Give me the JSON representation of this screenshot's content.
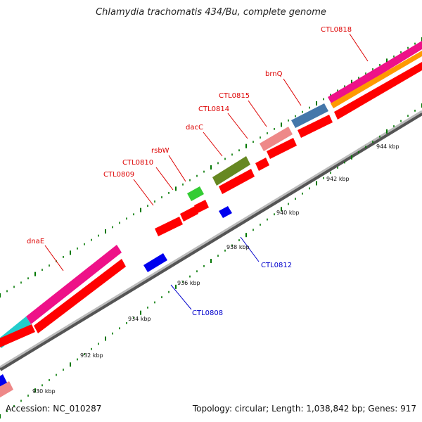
{
  "title": "Chlamydia trachomatis 434/Bu, complete genome",
  "footer": {
    "accession": "Accession: NC_010287",
    "summary": "Topology: circular; Length: 1,038,842 bp; Genes: 917"
  },
  "colors": {
    "forward_gene": "#ff0000",
    "reverse_gene": "#0000ee",
    "backbone": "#888888",
    "tick": "#007700",
    "label_forward": "#dd0000",
    "label_reverse": "#0000cc"
  },
  "kbp_labels": [
    "930 kbp",
    "932 kbp",
    "934 kbp",
    "936 kbp",
    "938 kbp",
    "940 kbp",
    "942 kbp",
    "944 kbp"
  ],
  "gene_labels": [
    {
      "text": "dnaE",
      "strand": "forward"
    },
    {
      "text": "CTL0809",
      "strand": "forward"
    },
    {
      "text": "CTL0810",
      "strand": "forward"
    },
    {
      "text": "rsbW",
      "strand": "forward"
    },
    {
      "text": "dacC",
      "strand": "forward"
    },
    {
      "text": "CTL0814",
      "strand": "forward"
    },
    {
      "text": "CTL0815",
      "strand": "forward"
    },
    {
      "text": "brnQ",
      "strand": "forward"
    },
    {
      "text": "CTL0818",
      "strand": "forward"
    },
    {
      "text": "CTL0808",
      "strand": "reverse"
    },
    {
      "text": "CTL0812",
      "strand": "reverse"
    }
  ]
}
